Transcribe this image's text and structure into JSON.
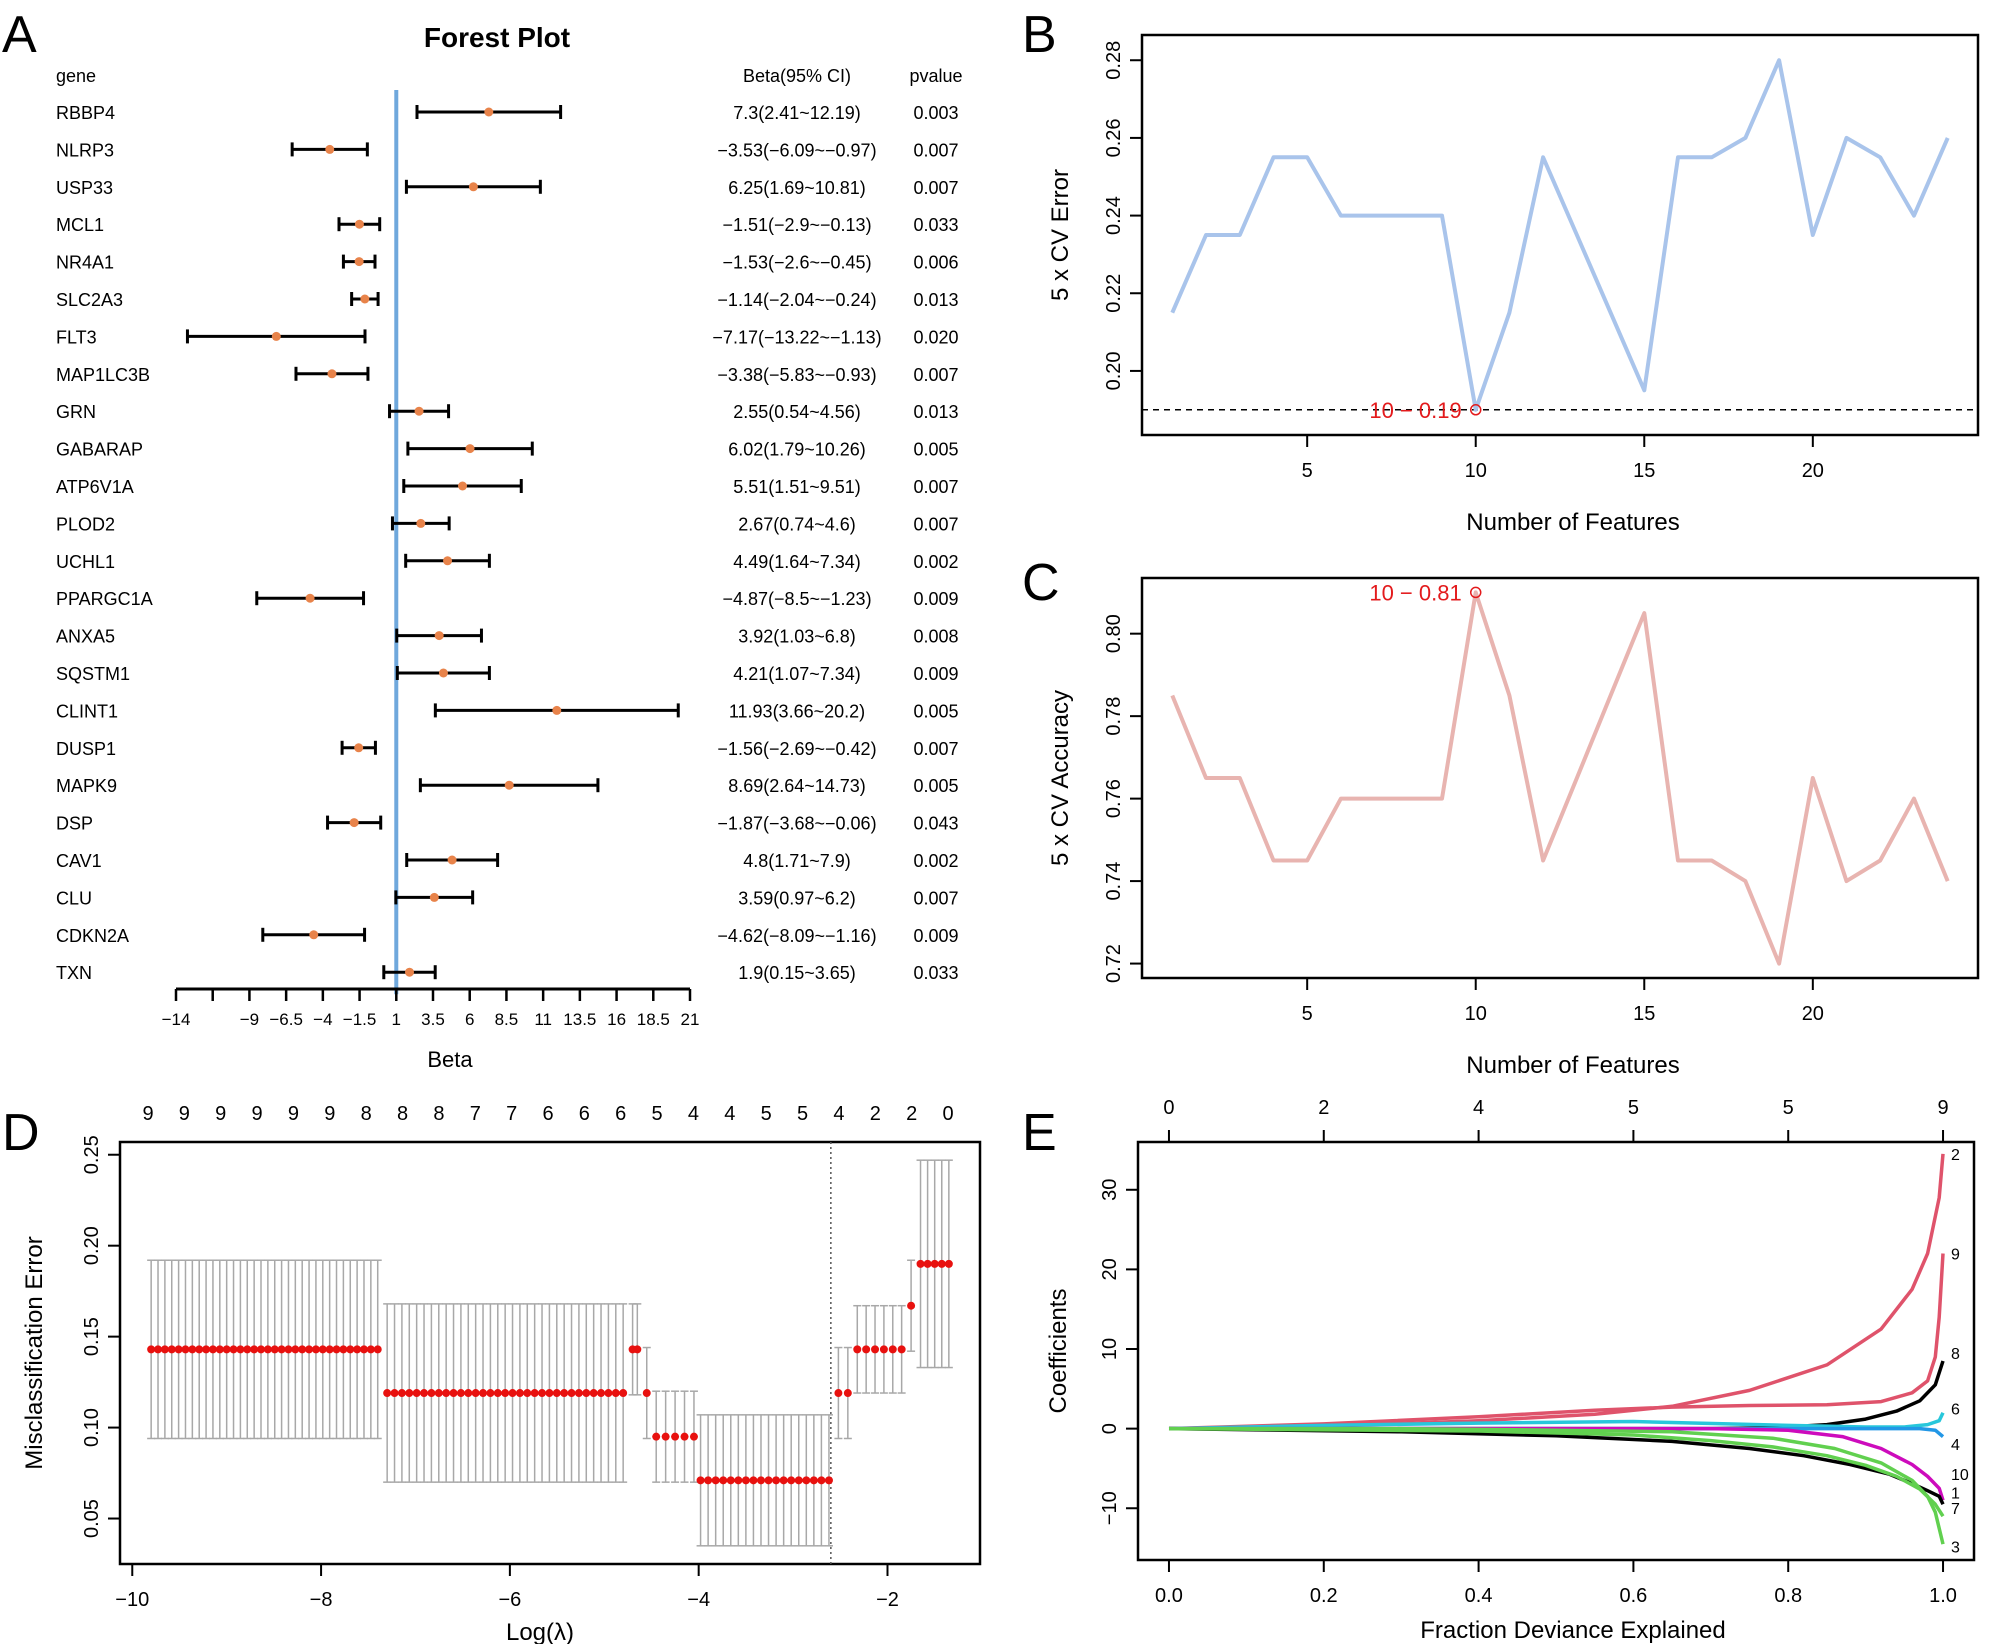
{
  "panel_letters": {
    "a": "A",
    "b": "B",
    "c": "C",
    "d": "D",
    "e": "E"
  },
  "colors": {
    "forest_point": "#E8834A",
    "forest_refline": "#6FA8DC",
    "cv_error_line": "#A9C4EB",
    "cv_accuracy_line": "#E8B4B0",
    "annotation_red": "#E31A1C",
    "lasso_point": "#E8110F",
    "lasso_errbar": "#A8A8A8"
  },
  "chart_data": [
    {
      "id": "A",
      "type": "forest",
      "title": "Forest Plot",
      "header": {
        "gene": "gene",
        "beta": "Beta(95% CI)",
        "pvalue": "pvalue"
      },
      "xlabel": "Beta",
      "xticks": [
        -14,
        -9,
        -6.5,
        -4,
        -1.5,
        1,
        3.5,
        6,
        8.5,
        11,
        13.5,
        16,
        18.5,
        21
      ],
      "xlim": [
        -14,
        21
      ],
      "reference_x": 1,
      "rows": [
        {
          "gene": "RBBP4",
          "beta": 7.3,
          "lo": 2.41,
          "hi": 12.19,
          "label": "7.3(2.41~12.19)",
          "p": "0.003"
        },
        {
          "gene": "NLRP3",
          "beta": -3.53,
          "lo": -6.09,
          "hi": -0.97,
          "label": "−3.53(−6.09~−0.97)",
          "p": "0.007"
        },
        {
          "gene": "USP33",
          "beta": 6.25,
          "lo": 1.69,
          "hi": 10.81,
          "label": "6.25(1.69~10.81)",
          "p": "0.007"
        },
        {
          "gene": "MCL1",
          "beta": -1.51,
          "lo": -2.9,
          "hi": -0.13,
          "label": "−1.51(−2.9~−0.13)",
          "p": "0.033"
        },
        {
          "gene": "NR4A1",
          "beta": -1.53,
          "lo": -2.6,
          "hi": -0.45,
          "label": "−1.53(−2.6~−0.45)",
          "p": "0.006"
        },
        {
          "gene": "SLC2A3",
          "beta": -1.14,
          "lo": -2.04,
          "hi": -0.24,
          "label": "−1.14(−2.04~−0.24)",
          "p": "0.013"
        },
        {
          "gene": "FLT3",
          "beta": -7.17,
          "lo": -13.22,
          "hi": -1.13,
          "label": "−7.17(−13.22~−1.13)",
          "p": "0.020"
        },
        {
          "gene": "MAP1LC3B",
          "beta": -3.38,
          "lo": -5.83,
          "hi": -0.93,
          "label": "−3.38(−5.83~−0.93)",
          "p": "0.007"
        },
        {
          "gene": "GRN",
          "beta": 2.55,
          "lo": 0.54,
          "hi": 4.56,
          "label": "2.55(0.54~4.56)",
          "p": "0.013"
        },
        {
          "gene": "GABARAP",
          "beta": 6.02,
          "lo": 1.79,
          "hi": 10.26,
          "label": "6.02(1.79~10.26)",
          "p": "0.005"
        },
        {
          "gene": "ATP6V1A",
          "beta": 5.51,
          "lo": 1.51,
          "hi": 9.51,
          "label": "5.51(1.51~9.51)",
          "p": "0.007"
        },
        {
          "gene": "PLOD2",
          "beta": 2.67,
          "lo": 0.74,
          "hi": 4.6,
          "label": "2.67(0.74~4.6)",
          "p": "0.007"
        },
        {
          "gene": "UCHL1",
          "beta": 4.49,
          "lo": 1.64,
          "hi": 7.34,
          "label": "4.49(1.64~7.34)",
          "p": "0.002"
        },
        {
          "gene": "PPARGC1A",
          "beta": -4.87,
          "lo": -8.5,
          "hi": -1.23,
          "label": "−4.87(−8.5~−1.23)",
          "p": "0.009"
        },
        {
          "gene": "ANXA5",
          "beta": 3.92,
          "lo": 1.03,
          "hi": 6.8,
          "label": "3.92(1.03~6.8)",
          "p": "0.008"
        },
        {
          "gene": "SQSTM1",
          "beta": 4.21,
          "lo": 1.07,
          "hi": 7.34,
          "label": "4.21(1.07~7.34)",
          "p": "0.009"
        },
        {
          "gene": "CLINT1",
          "beta": 11.93,
          "lo": 3.66,
          "hi": 20.2,
          "label": "11.93(3.66~20.2)",
          "p": "0.005"
        },
        {
          "gene": "DUSP1",
          "beta": -1.56,
          "lo": -2.69,
          "hi": -0.42,
          "label": "−1.56(−2.69~−0.42)",
          "p": "0.007"
        },
        {
          "gene": "MAPK9",
          "beta": 8.69,
          "lo": 2.64,
          "hi": 14.73,
          "label": "8.69(2.64~14.73)",
          "p": "0.005"
        },
        {
          "gene": "DSP",
          "beta": -1.87,
          "lo": -3.68,
          "hi": -0.06,
          "label": "−1.87(−3.68~−0.06)",
          "p": "0.043"
        },
        {
          "gene": "CAV1",
          "beta": 4.8,
          "lo": 1.71,
          "hi": 7.9,
          "label": "4.8(1.71~7.9)",
          "p": "0.002"
        },
        {
          "gene": "CLU",
          "beta": 3.59,
          "lo": 0.97,
          "hi": 6.2,
          "label": "3.59(0.97~6.2)",
          "p": "0.007"
        },
        {
          "gene": "CDKN2A",
          "beta": -4.62,
          "lo": -8.09,
          "hi": -1.16,
          "label": "−4.62(−8.09~−1.16)",
          "p": "0.009"
        },
        {
          "gene": "TXN",
          "beta": 1.9,
          "lo": 0.15,
          "hi": 3.65,
          "label": "1.9(0.15~3.65)",
          "p": "0.033"
        }
      ]
    },
    {
      "id": "B",
      "type": "line",
      "xlabel": "Number of Features",
      "ylabel": "5 x CV Error",
      "x": [
        1,
        2,
        3,
        4,
        5,
        6,
        7,
        8,
        9,
        10,
        11,
        12,
        13,
        14,
        15,
        16,
        17,
        18,
        19,
        20,
        21,
        22,
        23,
        24
      ],
      "values": [
        0.215,
        0.235,
        0.235,
        0.255,
        0.255,
        0.24,
        0.24,
        0.24,
        0.24,
        0.19,
        0.215,
        0.255,
        0.235,
        0.215,
        0.195,
        0.255,
        0.255,
        0.26,
        0.28,
        0.235,
        0.26,
        0.255,
        0.24,
        0.26
      ],
      "xticks": [
        5,
        10,
        15,
        20
      ],
      "yticks": [
        0.2,
        0.22,
        0.24,
        0.26,
        0.28
      ],
      "ytick_labels": [
        "0.20",
        "0.22",
        "0.24",
        "0.26",
        "0.28"
      ],
      "xlim": [
        0.1,
        24.9
      ],
      "ylim": [
        0.1835,
        0.2865
      ],
      "hline": 0.19,
      "highlight": {
        "x": 10,
        "y": 0.19,
        "label": "10 − 0.19"
      }
    },
    {
      "id": "C",
      "type": "line",
      "xlabel": "Number of Features",
      "ylabel": "5 x CV Accuracy",
      "x": [
        1,
        2,
        3,
        4,
        5,
        6,
        7,
        8,
        9,
        10,
        11,
        12,
        13,
        14,
        15,
        16,
        17,
        18,
        19,
        20,
        21,
        22,
        23,
        24
      ],
      "values": [
        0.785,
        0.765,
        0.765,
        0.745,
        0.745,
        0.76,
        0.76,
        0.76,
        0.76,
        0.81,
        0.785,
        0.745,
        0.765,
        0.785,
        0.805,
        0.745,
        0.745,
        0.74,
        0.72,
        0.765,
        0.74,
        0.745,
        0.76,
        0.74
      ],
      "xticks": [
        5,
        10,
        15,
        20
      ],
      "yticks": [
        0.72,
        0.74,
        0.76,
        0.78,
        0.8
      ],
      "ytick_labels": [
        "0.72",
        "0.74",
        "0.76",
        "0.78",
        "0.80"
      ],
      "xlim": [
        0.1,
        24.9
      ],
      "ylim": [
        0.7165,
        0.8135
      ],
      "highlight": {
        "x": 10,
        "y": 0.81,
        "label": "10 − 0.81"
      }
    },
    {
      "id": "D",
      "type": "scatter",
      "xlabel": "Log(λ)",
      "ylabel": "Misclassification Error",
      "xlim": [
        -10.13,
        -1.02
      ],
      "ylim": [
        0.025,
        0.257
      ],
      "xticks": [
        -10,
        -8,
        -6,
        -4,
        -2
      ],
      "xtick_labels": [
        "−10",
        "−8",
        "−6",
        "−4",
        "−2"
      ],
      "yticks": [
        0.05,
        0.1,
        0.15,
        0.2,
        0.25
      ],
      "ytick_labels": [
        "0.05",
        "0.10",
        "0.15",
        "0.20",
        "0.25"
      ],
      "top_axis_labels": [
        "9",
        "9",
        "9",
        "9",
        "9",
        "9",
        "8",
        "8",
        "8",
        "7",
        "7",
        "6",
        "6",
        "6",
        "5",
        "4",
        "4",
        "5",
        "5",
        "4",
        "2",
        "2",
        "0"
      ],
      "vline": -2.6,
      "segments": [
        {
          "from": -9.8,
          "to": -7.4,
          "n": 34,
          "y": 0.143,
          "err": 0.049
        },
        {
          "from": -7.3,
          "to": -4.8,
          "n": 33,
          "y": 0.119,
          "err": 0.049
        },
        {
          "from": -4.7,
          "to": -4.65,
          "n": 2,
          "y": 0.143,
          "err": 0.025
        },
        {
          "from": -4.55,
          "to": -4.55,
          "n": 1,
          "y": 0.119,
          "err": 0.025
        },
        {
          "from": -4.45,
          "to": -4.05,
          "n": 5,
          "y": 0.095,
          "err": 0.025
        },
        {
          "from": -3.98,
          "to": -2.62,
          "n": 18,
          "y": 0.071,
          "err": 0.036
        },
        {
          "from": -2.52,
          "to": -2.42,
          "n": 2,
          "y": 0.119,
          "err": 0.025
        },
        {
          "from": -2.32,
          "to": -1.85,
          "n": 6,
          "y": 0.143,
          "err": 0.024
        },
        {
          "from": -1.75,
          "to": -1.75,
          "n": 1,
          "y": 0.167,
          "err": 0.025
        },
        {
          "from": -1.65,
          "to": -1.35,
          "n": 5,
          "y": 0.19,
          "err": 0.057
        }
      ]
    },
    {
      "id": "E",
      "type": "line",
      "xlabel": "Fraction Deviance Explained",
      "ylabel": "Coefficients",
      "xlim": [
        -0.04,
        1.04
      ],
      "ylim": [
        -16.5,
        36
      ],
      "xticks": [
        0,
        0.2,
        0.4,
        0.6,
        0.8,
        1
      ],
      "xtick_labels": [
        "0.0",
        "0.2",
        "0.4",
        "0.6",
        "0.8",
        "1.0"
      ],
      "yticks": [
        -10,
        0,
        10,
        20,
        30
      ],
      "ytick_labels": [
        "−10",
        "0",
        "10",
        "20",
        "30"
      ],
      "top_axis": {
        "positions": [
          0,
          0.2,
          0.4,
          0.6,
          0.8,
          1
        ],
        "labels": [
          "0",
          "2",
          "4",
          "5",
          "5",
          "9"
        ]
      },
      "series": [
        {
          "name": "2",
          "color": "#DF536B",
          "x": [
            0,
            0.2,
            0.4,
            0.55,
            0.65,
            0.75,
            0.85,
            0.92,
            0.96,
            0.98,
            0.995,
            1.0
          ],
          "y": [
            0,
            0.3,
            1.0,
            1.8,
            2.8,
            4.8,
            8,
            12.5,
            17.5,
            22,
            29,
            34.5
          ]
        },
        {
          "name": "9",
          "color": "#DF536B",
          "x": [
            0,
            0.2,
            0.4,
            0.55,
            0.65,
            0.75,
            0.85,
            0.92,
            0.96,
            0.98,
            0.99,
            0.995,
            1.0
          ],
          "y": [
            0,
            0.6,
            1.5,
            2.3,
            2.7,
            2.9,
            3.0,
            3.4,
            4.5,
            6,
            9,
            14,
            22
          ]
        },
        {
          "name": "8",
          "color": "#000000",
          "x": [
            0,
            0.6,
            0.7,
            0.78,
            0.85,
            0.9,
            0.94,
            0.97,
            0.99,
            1.0
          ],
          "y": [
            0,
            0,
            0,
            0.1,
            0.5,
            1.2,
            2.2,
            3.5,
            5.5,
            8.5
          ]
        },
        {
          "name": "6",
          "color": "#28C7DB",
          "x": [
            0,
            0.2,
            0.4,
            0.6,
            0.8,
            0.9,
            0.95,
            0.98,
            0.995,
            1.0
          ],
          "y": [
            0,
            0.4,
            0.7,
            0.9,
            0.4,
            0.2,
            0.2,
            0.5,
            1.0,
            2
          ]
        },
        {
          "name": "4",
          "color": "#2297E6",
          "x": [
            0,
            0.9,
            0.97,
            0.99,
            1.0
          ],
          "y": [
            0,
            0,
            0,
            -0.2,
            -1
          ]
        },
        {
          "name": "10",
          "color": "#CD0BBC",
          "x": [
            0,
            0.7,
            0.8,
            0.87,
            0.92,
            0.96,
            0.98,
            0.995,
            1.0
          ],
          "y": [
            0,
            0,
            -0.2,
            -1,
            -2.5,
            -4.5,
            -6,
            -7.5,
            -9
          ]
        },
        {
          "name": "1",
          "color": "#000000",
          "x": [
            0,
            0.3,
            0.5,
            0.65,
            0.75,
            0.82,
            0.88,
            0.93,
            0.96,
            0.98,
            0.995,
            1.0
          ],
          "y": [
            0,
            -0.4,
            -0.9,
            -1.6,
            -2.5,
            -3.4,
            -4.5,
            -5.7,
            -6.9,
            -7.8,
            -8.5,
            -9.5
          ]
        },
        {
          "name": "7",
          "color": "#61D04F",
          "x": [
            0,
            0.4,
            0.6,
            0.7,
            0.78,
            0.85,
            0.9,
            0.94,
            0.97,
            0.99,
            1.0
          ],
          "y": [
            0,
            -0.3,
            -0.8,
            -1.5,
            -2.3,
            -3.4,
            -4.6,
            -6,
            -7.6,
            -9.5,
            -11
          ]
        },
        {
          "name": "3",
          "color": "#61D04F",
          "x": [
            0,
            0.3,
            0.5,
            0.65,
            0.78,
            0.86,
            0.92,
            0.96,
            0.98,
            0.99,
            1.0
          ],
          "y": [
            0,
            0,
            -0.2,
            -0.4,
            -1.2,
            -2.5,
            -4.3,
            -6.5,
            -8.5,
            -10.5,
            -14.5
          ]
        }
      ]
    }
  ]
}
